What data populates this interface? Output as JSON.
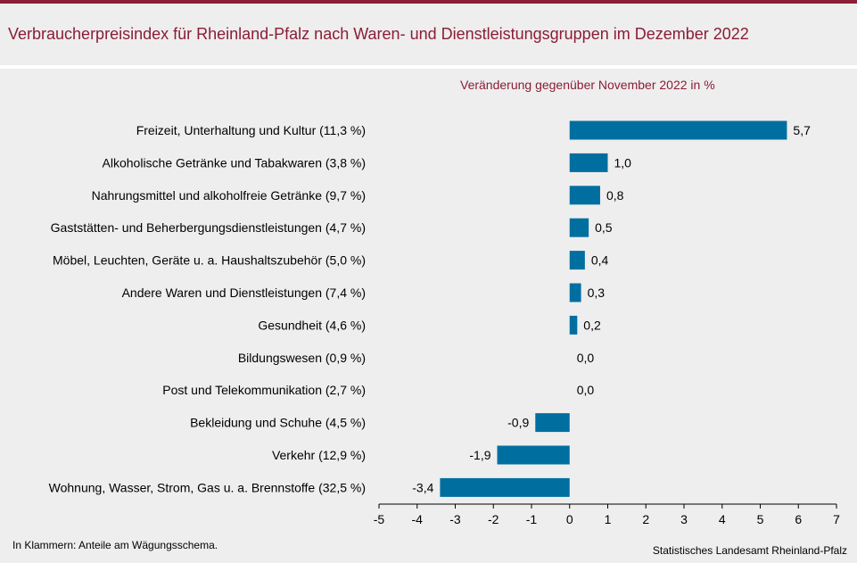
{
  "title": "Verbraucherpreisindex für Rheinland-Pfalz nach Waren- und Dienstleistungsgruppen im Dezember 2022",
  "footnote": "In Klammern: Anteile am Wägungsschema.",
  "source": "Statistisches Landesamt Rheinland-Pfalz",
  "colors": {
    "bar": "#006fa0",
    "accent": "#8b1d35",
    "background": "#eeeeee"
  },
  "chart_data": {
    "type": "bar",
    "orientation": "horizontal",
    "subtitle": "Veränderung  gegenüber November 2022 in %",
    "categories": [
      "Freizeit, Unterhaltung und Kultur (11,3 %)",
      "Alkoholische Getränke und Tabakwaren (3,8 %)",
      "Nahrungsmittel und alkoholfreie Getränke (9,7 %)",
      "Gaststätten- und Beherbergungsdienstleistungen (4,7 %)",
      "Möbel, Leuchten, Geräte u. a. Haushaltszubehör (5,0 %)",
      "Andere Waren und Dienstleistungen (7,4 %)",
      "Gesundheit (4,6 %)",
      "Bildungswesen (0,9 %)",
      "Post und Telekommunikation (2,7 %)",
      "Bekleidung und Schuhe (4,5 %)",
      "Verkehr (12,9 %)",
      "Wohnung, Wasser, Strom, Gas u. a. Brennstoffe (32,5 %)"
    ],
    "values": [
      5.7,
      1.0,
      0.8,
      0.5,
      0.4,
      0.3,
      0.2,
      0.0,
      0.0,
      -0.9,
      -1.9,
      -3.4
    ],
    "value_labels": [
      "5,7",
      "1,0",
      "0,8",
      "0,5",
      "0,4",
      "0,3",
      "0,2",
      "0,0",
      "0,0",
      "-0,9",
      "-1,9",
      "-3,4"
    ],
    "xlim": [
      -5,
      7
    ],
    "xticks": [
      -5,
      -4,
      -3,
      -2,
      -1,
      0,
      1,
      2,
      3,
      4,
      5,
      6,
      7
    ],
    "grid": false,
    "legend": "none"
  }
}
